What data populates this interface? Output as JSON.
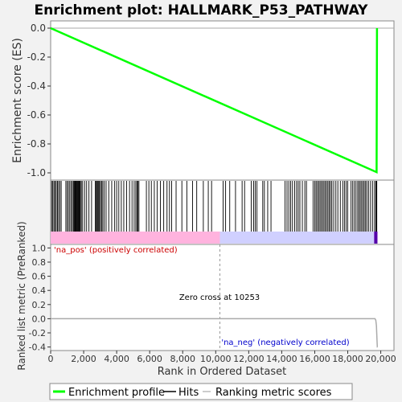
{
  "chart_data": [
    {
      "type": "line",
      "title": "Enrichment plot: HALLMARK_P53_PATHWAY",
      "ylabel": "Enrichment score (ES)",
      "ylim": [
        -1.05,
        0.05
      ],
      "yticks": [
        0.0,
        -0.2,
        -0.4,
        -0.6,
        -0.8,
        -1.0
      ],
      "ytick_labels": [
        "0.0",
        "-0.2",
        "-0.4",
        "-0.6",
        "-0.8",
        "-1.0"
      ],
      "xlim": [
        0,
        20800
      ],
      "grid": false,
      "series": [
        {
          "name": "Enrichment profile",
          "color": "#00ff00",
          "x": [
            0,
            19750,
            19770
          ],
          "y": [
            0.0,
            -0.995,
            0.0
          ]
        }
      ]
    },
    {
      "type": "scatter",
      "description_type": "hits",
      "xlim": [
        0,
        20800
      ],
      "hits": [
        60,
        130,
        200,
        270,
        340,
        410,
        480,
        560,
        640,
        920,
        1000,
        1080,
        1160,
        1240,
        1320,
        1380,
        1430,
        1470,
        1510,
        1550,
        1590,
        1630,
        1670,
        1710,
        1750,
        1800,
        1860,
        1940,
        2060,
        2180,
        2320,
        2480,
        2700,
        2760,
        2810,
        2860,
        2910,
        2960,
        3020,
        3090,
        3160,
        3250,
        3360,
        3520,
        3700,
        3880,
        4000,
        4130,
        4280,
        4430,
        4600,
        4780,
        4930,
        5060,
        5160,
        5230,
        5290,
        5350,
        5800,
        5950,
        6100,
        6280,
        6450,
        6650,
        6850,
        7050,
        7200,
        7330,
        7600,
        7950,
        8250,
        8600,
        8850,
        9250,
        9550,
        9750,
        10450,
        10600,
        10850,
        11200,
        11600,
        11750,
        12150,
        12300,
        12400,
        12500,
        12850,
        12950,
        13150,
        13350,
        14200,
        14320,
        14430,
        14540,
        14650,
        14780,
        14900,
        15000,
        15100,
        15250,
        15400,
        15500,
        15900,
        16000,
        16080,
        16160,
        16240,
        16320,
        16400,
        16480,
        16560,
        16640,
        16720,
        16800,
        16880,
        16960,
        17040,
        17150,
        17280,
        17400,
        17550,
        17700,
        17800,
        17900,
        18000,
        18200,
        18300,
        18400,
        18500,
        18600,
        18680,
        18760,
        18840,
        18920,
        19000,
        19080,
        19160,
        19260,
        19380,
        19500,
        19620,
        19700,
        19730,
        19760
      ]
    },
    {
      "type": "area",
      "ylabel": "Ranked list metric (PreRanked)",
      "xlabel": "Rank in Ordered Dataset",
      "xlim": [
        0,
        20800
      ],
      "ylim": [
        -0.45,
        1.05
      ],
      "xticks": [
        0,
        2000,
        4000,
        6000,
        8000,
        10000,
        12000,
        14000,
        16000,
        18000,
        20000
      ],
      "xtick_labels": [
        "0",
        "2,000",
        "4,000",
        "6,000",
        "8,000",
        "10,000",
        "12,000",
        "14,000",
        "16,000",
        "18,000",
        "20,000"
      ],
      "yticks": [
        1.0,
        0.8,
        0.6,
        0.4,
        0.2,
        0.0,
        -0.2,
        -0.4
      ],
      "ytick_labels": [
        "1.0",
        "0.8",
        "0.6",
        "0.4",
        "0.2",
        "0.0",
        "-0.2",
        "-0.4"
      ],
      "series": [
        {
          "name": "Ranking metric scores",
          "x": [
            0,
            19650,
            19700,
            19740,
            19770,
            19790,
            19800
          ],
          "y": [
            0.0,
            0.0,
            -0.02,
            -0.1,
            -0.3,
            -0.4,
            -0.4
          ]
        }
      ],
      "annotations": {
        "pos_label": "'na_pos' (positively correlated)",
        "neg_label": "'na_neg' (negatively correlated)",
        "zero_cross": "Zero cross at 10253",
        "zero_cross_x": 10253
      },
      "colors": {
        "pos_label": "#cc0000",
        "neg_label": "#0000cc"
      }
    }
  ],
  "legend": {
    "items": [
      {
        "label": "Enrichment profile",
        "color": "#00ff00"
      },
      {
        "label": "Hits",
        "color": "#000000"
      },
      {
        "label": "Ranking metric scores",
        "color": "#bbbbbb"
      }
    ]
  }
}
